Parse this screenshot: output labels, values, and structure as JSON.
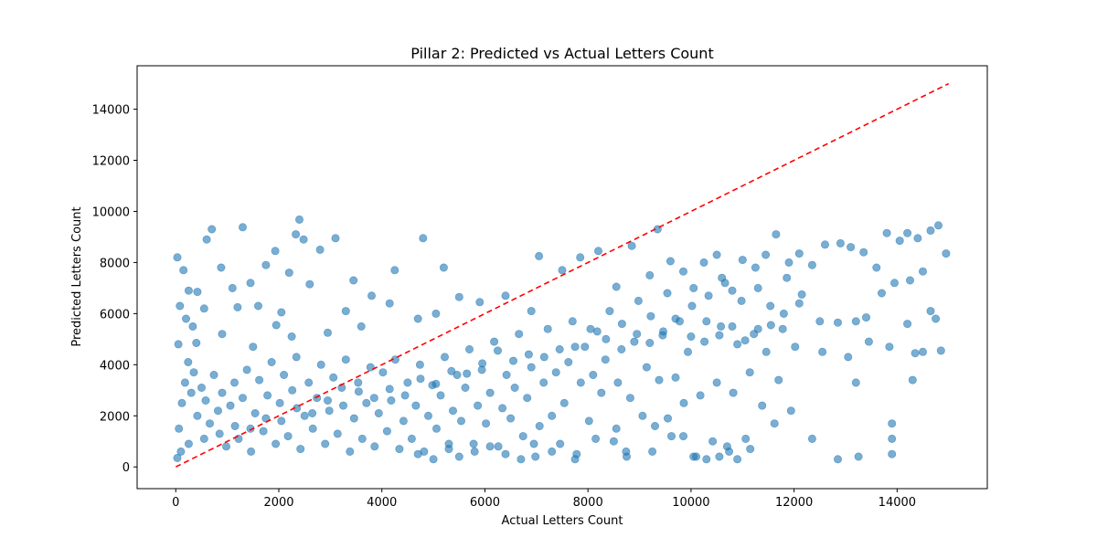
{
  "chart_data": {
    "type": "scatter",
    "title": "Pillar 2: Predicted vs Actual Letters Count",
    "xlabel": "Actual Letters Count",
    "ylabel": "Predicted Letters Count",
    "xlim": [
      -750,
      15750
    ],
    "ylim": [
      -850,
      15700
    ],
    "xticks": [
      0,
      2000,
      4000,
      6000,
      8000,
      10000,
      12000,
      14000
    ],
    "yticks": [
      0,
      2000,
      4000,
      6000,
      8000,
      10000,
      12000,
      14000
    ],
    "grid": false,
    "point_color": "#1f77b4",
    "point_alpha": 0.6,
    "reference_line": {
      "from": [
        0,
        0
      ],
      "to": [
        15000,
        15000
      ],
      "color": "#ff0000",
      "style": "dashed"
    },
    "points": [
      [
        30,
        8200
      ],
      [
        150,
        7700
      ],
      [
        250,
        6900
      ],
      [
        330,
        5500
      ],
      [
        420,
        6850
      ],
      [
        600,
        8900
      ],
      [
        700,
        9300
      ],
      [
        880,
        7800
      ],
      [
        1100,
        7000
      ],
      [
        1300,
        9380
      ],
      [
        1450,
        7200
      ],
      [
        1600,
        6300
      ],
      [
        1750,
        7900
      ],
      [
        1930,
        8450
      ],
      [
        2050,
        6050
      ],
      [
        2200,
        7600
      ],
      [
        2330,
        9100
      ],
      [
        2400,
        9680
      ],
      [
        2480,
        8900
      ],
      [
        2600,
        7150
      ],
      [
        2800,
        8500
      ],
      [
        3100,
        8950
      ],
      [
        3450,
        7300
      ],
      [
        3800,
        6700
      ],
      [
        4250,
        7700
      ],
      [
        4800,
        8950
      ],
      [
        5200,
        7800
      ],
      [
        5500,
        6650
      ],
      [
        4700,
        5800
      ],
      [
        3600,
        5500
      ],
      [
        2950,
        5250
      ],
      [
        2250,
        5100
      ],
      [
        1500,
        4700
      ],
      [
        900,
        5200
      ],
      [
        400,
        4850
      ],
      [
        50,
        4800
      ],
      [
        80,
        6300
      ],
      [
        200,
        5800
      ],
      [
        550,
        6200
      ],
      [
        1200,
        6250
      ],
      [
        1950,
        5550
      ],
      [
        3300,
        6100
      ],
      [
        4150,
        6400
      ],
      [
        5050,
        6000
      ],
      [
        5900,
        6450
      ],
      [
        6400,
        6700
      ],
      [
        6900,
        6100
      ],
      [
        7050,
        8250
      ],
      [
        7500,
        7700
      ],
      [
        7850,
        8200
      ],
      [
        8200,
        8450
      ],
      [
        8550,
        7050
      ],
      [
        8850,
        8650
      ],
      [
        9200,
        7500
      ],
      [
        9350,
        9300
      ],
      [
        9600,
        8050
      ],
      [
        9850,
        7650
      ],
      [
        10050,
        7000
      ],
      [
        10250,
        8000
      ],
      [
        10500,
        8300
      ],
      [
        10600,
        7400
      ],
      [
        10800,
        6900
      ],
      [
        11000,
        8100
      ],
      [
        11250,
        7800
      ],
      [
        11450,
        8300
      ],
      [
        11650,
        9100
      ],
      [
        11900,
        8000
      ],
      [
        12100,
        8350
      ],
      [
        12350,
        7900
      ],
      [
        12600,
        8700
      ],
      [
        12900,
        8750
      ],
      [
        13100,
        8600
      ],
      [
        13350,
        8400
      ],
      [
        13600,
        7800
      ],
      [
        13800,
        9150
      ],
      [
        14050,
        8850
      ],
      [
        14200,
        9150
      ],
      [
        14400,
        8950
      ],
      [
        14650,
        9250
      ],
      [
        14800,
        9450
      ],
      [
        14950,
        8350
      ],
      [
        14250,
        7300
      ],
      [
        14500,
        7650
      ],
      [
        13950,
        7200
      ],
      [
        13700,
        6800
      ],
      [
        13400,
        5850
      ],
      [
        13200,
        5700
      ],
      [
        12850,
        5650
      ],
      [
        12500,
        5700
      ],
      [
        12150,
        6750
      ],
      [
        11800,
        6000
      ],
      [
        11550,
        5550
      ],
      [
        11300,
        5400
      ],
      [
        11050,
        4950
      ],
      [
        10800,
        5500
      ],
      [
        10550,
        5150
      ],
      [
        10300,
        5700
      ],
      [
        10000,
        5100
      ],
      [
        9700,
        5800
      ],
      [
        9450,
        5150
      ],
      [
        9200,
        4850
      ],
      [
        8950,
        5200
      ],
      [
        8650,
        4600
      ],
      [
        8350,
        5000
      ],
      [
        8050,
        5400
      ],
      [
        7750,
        4700
      ],
      [
        7450,
        4600
      ],
      [
        7150,
        4300
      ],
      [
        6850,
        4400
      ],
      [
        6550,
        4150
      ],
      [
        6250,
        4550
      ],
      [
        5950,
        4050
      ],
      [
        5650,
        3650
      ],
      [
        5350,
        3750
      ],
      [
        5050,
        3250
      ],
      [
        4750,
        3450
      ],
      [
        4450,
        2800
      ],
      [
        4150,
        3050
      ],
      [
        3850,
        2700
      ],
      [
        3550,
        2950
      ],
      [
        3250,
        2400
      ],
      [
        2950,
        2600
      ],
      [
        2650,
        2100
      ],
      [
        2350,
        2300
      ],
      [
        2050,
        1800
      ],
      [
        1750,
        1900
      ],
      [
        1450,
        1500
      ],
      [
        1150,
        1600
      ],
      [
        850,
        1300
      ],
      [
        550,
        1100
      ],
      [
        250,
        900
      ],
      [
        100,
        600
      ],
      [
        30,
        350
      ],
      [
        60,
        1500
      ],
      [
        120,
        2500
      ],
      [
        180,
        3300
      ],
      [
        240,
        4100
      ],
      [
        300,
        2900
      ],
      [
        350,
        3700
      ],
      [
        420,
        2000
      ],
      [
        500,
        3100
      ],
      [
        580,
        2600
      ],
      [
        660,
        1700
      ],
      [
        740,
        3600
      ],
      [
        820,
        2200
      ],
      [
        900,
        2900
      ],
      [
        980,
        800
      ],
      [
        1060,
        2400
      ],
      [
        1140,
        3300
      ],
      [
        1220,
        1100
      ],
      [
        1300,
        2700
      ],
      [
        1380,
        3800
      ],
      [
        1460,
        600
      ],
      [
        1540,
        2100
      ],
      [
        1620,
        3400
      ],
      [
        1700,
        1400
      ],
      [
        1780,
        2800
      ],
      [
        1860,
        4100
      ],
      [
        1940,
        900
      ],
      [
        2020,
        2500
      ],
      [
        2100,
        3600
      ],
      [
        2180,
        1200
      ],
      [
        2260,
        3000
      ],
      [
        2340,
        4300
      ],
      [
        2420,
        700
      ],
      [
        2500,
        2000
      ],
      [
        2580,
        3300
      ],
      [
        2660,
        1500
      ],
      [
        2740,
        2700
      ],
      [
        2820,
        4000
      ],
      [
        2900,
        900
      ],
      [
        2980,
        2200
      ],
      [
        3060,
        3500
      ],
      [
        3140,
        1300
      ],
      [
        3220,
        3100
      ],
      [
        3300,
        4200
      ],
      [
        3380,
        600
      ],
      [
        3460,
        1900
      ],
      [
        3540,
        3300
      ],
      [
        3620,
        1100
      ],
      [
        3700,
        2500
      ],
      [
        3780,
        3900
      ],
      [
        3860,
        800
      ],
      [
        3940,
        2100
      ],
      [
        4020,
        3700
      ],
      [
        4100,
        1400
      ],
      [
        4180,
        2600
      ],
      [
        4260,
        4200
      ],
      [
        4340,
        700
      ],
      [
        4420,
        1800
      ],
      [
        4500,
        3300
      ],
      [
        4580,
        1100
      ],
      [
        4660,
        2400
      ],
      [
        4740,
        4000
      ],
      [
        4820,
        600
      ],
      [
        4900,
        2000
      ],
      [
        4980,
        3200
      ],
      [
        5060,
        1500
      ],
      [
        5140,
        2800
      ],
      [
        5220,
        4300
      ],
      [
        5300,
        700
      ],
      [
        5380,
        2200
      ],
      [
        5460,
        3600
      ],
      [
        5540,
        1800
      ],
      [
        5620,
        3100
      ],
      [
        5700,
        4600
      ],
      [
        5780,
        900
      ],
      [
        5860,
        2400
      ],
      [
        5940,
        3800
      ],
      [
        6020,
        1700
      ],
      [
        6100,
        2900
      ],
      [
        6180,
        4900
      ],
      [
        6260,
        800
      ],
      [
        6340,
        2300
      ],
      [
        6420,
        3600
      ],
      [
        6500,
        1900
      ],
      [
        6580,
        3100
      ],
      [
        6660,
        5200
      ],
      [
        6740,
        1200
      ],
      [
        6820,
        2700
      ],
      [
        6900,
        3900
      ],
      [
        6980,
        400
      ],
      [
        7060,
        1600
      ],
      [
        7140,
        3300
      ],
      [
        7220,
        5400
      ],
      [
        7300,
        2000
      ],
      [
        7380,
        3700
      ],
      [
        7460,
        900
      ],
      [
        7540,
        2500
      ],
      [
        7620,
        4100
      ],
      [
        7700,
        5700
      ],
      [
        7780,
        500
      ],
      [
        7860,
        3300
      ],
      [
        7940,
        4700
      ],
      [
        8020,
        1800
      ],
      [
        8100,
        3600
      ],
      [
        8180,
        5300
      ],
      [
        8260,
        2900
      ],
      [
        8340,
        4200
      ],
      [
        8420,
        6100
      ],
      [
        8500,
        1000
      ],
      [
        8580,
        3300
      ],
      [
        8660,
        5600
      ],
      [
        8740,
        600
      ],
      [
        8820,
        2700
      ],
      [
        8900,
        4900
      ],
      [
        8980,
        6500
      ],
      [
        9060,
        2000
      ],
      [
        9140,
        3900
      ],
      [
        9220,
        5900
      ],
      [
        9300,
        1600
      ],
      [
        9380,
        3400
      ],
      [
        9460,
        5300
      ],
      [
        9540,
        6800
      ],
      [
        9620,
        1200
      ],
      [
        9700,
        3500
      ],
      [
        9780,
        5700
      ],
      [
        9860,
        2500
      ],
      [
        9940,
        4500
      ],
      [
        10020,
        6300
      ],
      [
        10100,
        400
      ],
      [
        10180,
        2800
      ],
      [
        10260,
        4900
      ],
      [
        10340,
        6700
      ],
      [
        10420,
        1000
      ],
      [
        10500,
        3300
      ],
      [
        10580,
        5500
      ],
      [
        10660,
        7200
      ],
      [
        10740,
        600
      ],
      [
        10820,
        2900
      ],
      [
        10900,
        4800
      ],
      [
        10980,
        6500
      ],
      [
        11060,
        1100
      ],
      [
        11140,
        3700
      ],
      [
        11220,
        5200
      ],
      [
        11300,
        7000
      ],
      [
        11380,
        2400
      ],
      [
        11460,
        4500
      ],
      [
        11540,
        6300
      ],
      [
        11620,
        1700
      ],
      [
        11700,
        3400
      ],
      [
        11780,
        5400
      ],
      [
        11860,
        7400
      ],
      [
        11940,
        2200
      ],
      [
        12020,
        4700
      ],
      [
        12100,
        6400
      ],
      [
        12350,
        1100
      ],
      [
        12550,
        4500
      ],
      [
        12850,
        300
      ],
      [
        13050,
        4300
      ],
      [
        13200,
        3300
      ],
      [
        13250,
        400
      ],
      [
        13450,
        4900
      ],
      [
        13850,
        4700
      ],
      [
        13900,
        1700
      ],
      [
        13900,
        1100
      ],
      [
        13900,
        500
      ],
      [
        14200,
        5600
      ],
      [
        14350,
        4450
      ],
      [
        14500,
        4500
      ],
      [
        14650,
        6100
      ],
      [
        14750,
        5800
      ],
      [
        14850,
        4550
      ],
      [
        14300,
        3400
      ],
      [
        10050,
        400
      ],
      [
        10300,
        300
      ],
      [
        10550,
        400
      ],
      [
        10700,
        800
      ],
      [
        10900,
        300
      ],
      [
        11150,
        700
      ],
      [
        9850,
        1200
      ],
      [
        9550,
        1900
      ],
      [
        9250,
        600
      ],
      [
        8750,
        400
      ],
      [
        8550,
        1500
      ],
      [
        8150,
        1100
      ],
      [
        7750,
        300
      ],
      [
        7300,
        600
      ],
      [
        6950,
        900
      ],
      [
        6700,
        300
      ],
      [
        6400,
        500
      ],
      [
        6100,
        800
      ],
      [
        5800,
        600
      ],
      [
        5500,
        400
      ],
      [
        5300,
        900
      ],
      [
        5000,
        300
      ],
      [
        4700,
        500
      ]
    ]
  }
}
